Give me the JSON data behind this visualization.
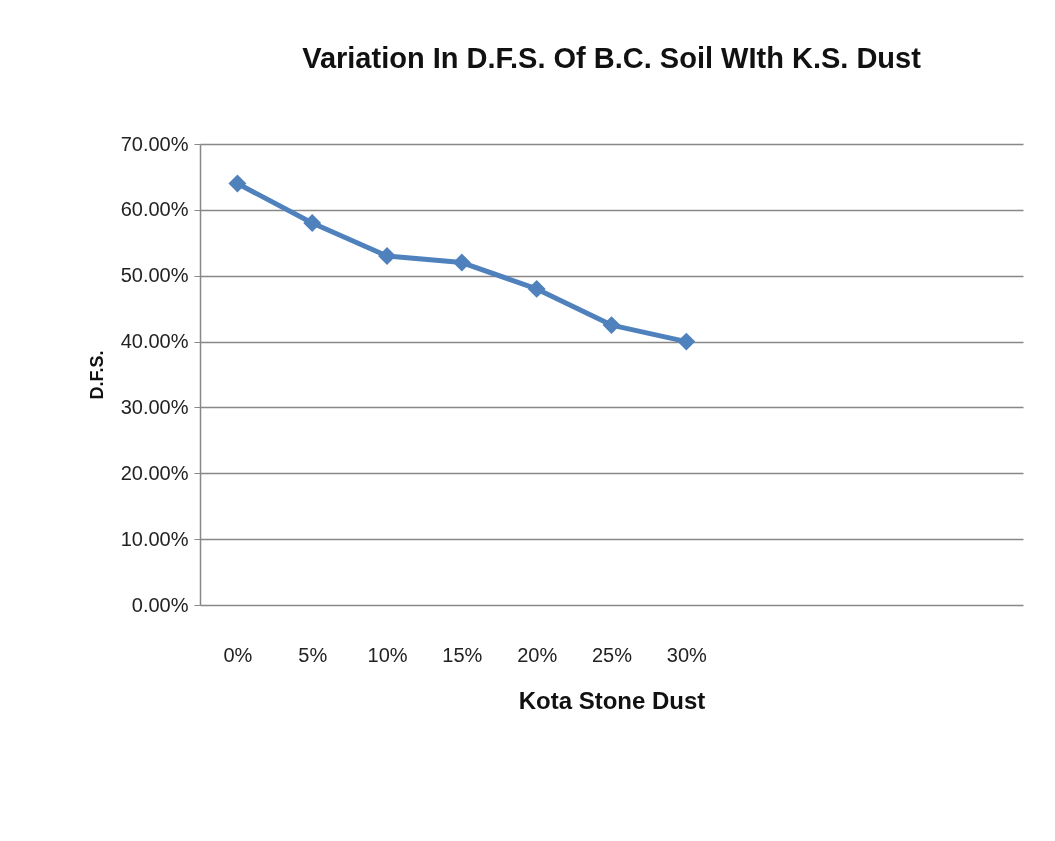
{
  "chart_data": {
    "type": "line",
    "title": "Variation  In D.F.S. Of B.C. Soil WIth K.S. Dust",
    "xlabel": "Kota Stone Dust",
    "ylabel": "D.F.S.",
    "categories": [
      "0%",
      "5%",
      "10%",
      "15%",
      "20%",
      "25%",
      "30%",
      null,
      null,
      null,
      null
    ],
    "series": [
      {
        "color": "#4f81bd",
        "values": [
          64,
          58,
          53,
          52,
          48,
          42.5,
          40,
          null,
          null,
          null,
          null
        ]
      }
    ],
    "ylim": [
      0,
      70
    ],
    "yticks": [
      {
        "value": 0,
        "label": "0.00%"
      },
      {
        "value": 10,
        "label": "10.00%"
      },
      {
        "value": 20,
        "label": "20.00%"
      },
      {
        "value": 30,
        "label": "30.00%"
      },
      {
        "value": 40,
        "label": "40.00%"
      },
      {
        "value": 50,
        "label": "50.00%"
      },
      {
        "value": 60,
        "label": "60.00%"
      },
      {
        "value": 70,
        "label": "70.00%"
      }
    ],
    "grid": "y",
    "marker": "diamond",
    "line_style": "solid"
  }
}
